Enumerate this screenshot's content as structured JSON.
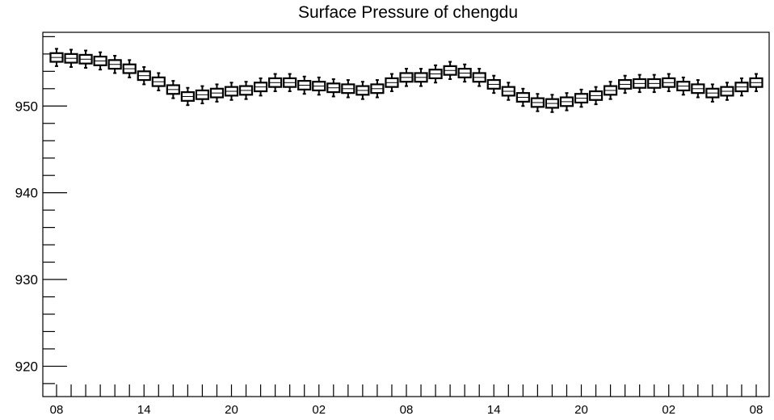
{
  "chart_data": {
    "type": "boxplot",
    "title": "Surface Pressure of chengdu",
    "xlabel": "",
    "ylabel": "",
    "ylim": [
      916.5,
      958.5
    ],
    "y_ticks": [
      920,
      930,
      940,
      950
    ],
    "y_tick_labels": [
      "920",
      "930",
      "940",
      "950"
    ],
    "x_tick_labels": [
      {
        "index": 0,
        "label": "08"
      },
      {
        "index": 6,
        "label": "14"
      },
      {
        "index": 12,
        "label": "20"
      },
      {
        "index": 18,
        "label": "02"
      },
      {
        "index": 24,
        "label": "08"
      },
      {
        "index": 30,
        "label": "14"
      },
      {
        "index": 36,
        "label": "20"
      },
      {
        "index": 42,
        "label": "02"
      },
      {
        "index": 48,
        "label": "08"
      }
    ],
    "grid": false,
    "values": [
      955.6,
      955.5,
      955.4,
      955.2,
      954.8,
      954.3,
      953.5,
      952.8,
      951.9,
      951.1,
      951.3,
      951.5,
      951.7,
      951.8,
      952.2,
      952.7,
      952.7,
      952.4,
      952.3,
      952.1,
      952.0,
      951.8,
      952.0,
      952.7,
      953.3,
      953.3,
      953.7,
      954.1,
      953.8,
      953.3,
      952.5,
      951.7,
      951.0,
      950.4,
      950.3,
      950.5,
      950.9,
      951.2,
      951.8,
      952.5,
      952.6,
      952.6,
      952.7,
      952.3,
      952.0,
      951.5,
      951.7,
      952.2,
      952.7
    ],
    "box_halfspread": 0.5,
    "whisker_halfspread": 1.0
  }
}
